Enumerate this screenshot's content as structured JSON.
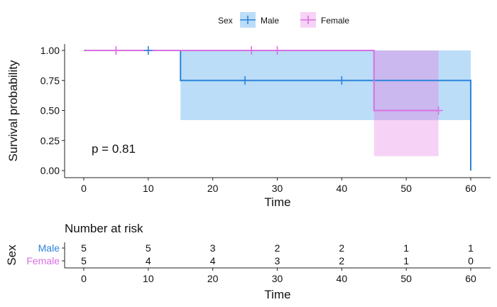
{
  "legend": {
    "title": "Sex",
    "items": [
      {
        "label": "Male",
        "color": "#2B84D8",
        "fill": "#BBDDF8"
      },
      {
        "label": "Female",
        "color": "#D96FE0",
        "fill": "#F6D3F6"
      }
    ],
    "overlap_fill": "#CBB8EE"
  },
  "annotation": {
    "pvalue": "p = 0.81"
  },
  "risk_table": {
    "title": "Number at risk",
    "ylabel": "Sex",
    "xlabel": "Time",
    "rows": [
      {
        "label": "Male",
        "counts": [
          "5",
          "5",
          "3",
          "2",
          "2",
          "1",
          "1"
        ]
      },
      {
        "label": "Female",
        "counts": [
          "5",
          "4",
          "4",
          "3",
          "2",
          "1",
          "0"
        ]
      }
    ]
  },
  "chart_data": {
    "type": "line",
    "subtype": "kaplan-meier survival curve (step)",
    "xlabel": "Time",
    "ylabel": "Survival probability",
    "xlim": [
      0,
      60
    ],
    "ylim": [
      0,
      1
    ],
    "xticks": [
      0,
      10,
      20,
      30,
      40,
      50,
      60
    ],
    "yticks": [
      0.0,
      0.25,
      0.5,
      0.75,
      1.0
    ],
    "ytick_labels": [
      "0.00",
      "0.25",
      "0.50",
      "0.75",
      "1.00"
    ],
    "grid": false,
    "legend_position": "top",
    "series": [
      {
        "name": "Male",
        "steps": [
          [
            0,
            1.0
          ],
          [
            15,
            0.75
          ],
          [
            60,
            0.0
          ]
        ],
        "censor_times": [
          10,
          25,
          40
        ],
        "ci": [
          {
            "from": 0,
            "to": 15,
            "lower": 1.0,
            "upper": 1.0
          },
          {
            "from": 15,
            "to": 60,
            "lower": 0.42,
            "upper": 1.0
          }
        ]
      },
      {
        "name": "Female",
        "steps": [
          [
            0,
            1.0
          ],
          [
            45,
            0.5
          ]
        ],
        "end_time": 55,
        "censor_times": [
          5,
          26,
          30,
          55
        ],
        "ci": [
          {
            "from": 0,
            "to": 45,
            "lower": 1.0,
            "upper": 1.0
          },
          {
            "from": 45,
            "to": 55,
            "lower": 0.12,
            "upper": 1.0
          }
        ]
      }
    ]
  }
}
